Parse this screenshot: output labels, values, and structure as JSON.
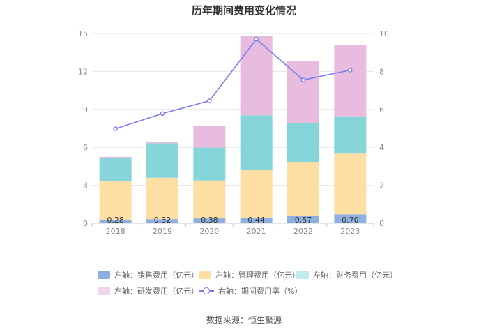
{
  "chart_data": {
    "type": "bar",
    "title": "历年期间费用变化情况",
    "categories": [
      "2018",
      "2019",
      "2020",
      "2021",
      "2022",
      "2023"
    ],
    "stacked": true,
    "series": [
      {
        "name": "左轴：销售费用（亿元）",
        "axis": "left",
        "color": "#8eb0e0",
        "values": [
          0.28,
          0.32,
          0.38,
          0.44,
          0.57,
          0.7
        ]
      },
      {
        "name": "左轴：管理费用（亿元）",
        "axis": "left",
        "color": "#fddea3",
        "values": [
          3.05,
          3.28,
          3.0,
          3.75,
          4.28,
          4.8
        ]
      },
      {
        "name": "左轴：财务费用（亿元）",
        "axis": "left",
        "color": "#86d5d9",
        "values": [
          1.85,
          2.72,
          2.6,
          4.35,
          3.05,
          2.95
        ]
      },
      {
        "name": "左轴：研发费用（亿元）",
        "axis": "left",
        "color": "#e8bcde",
        "values": [
          0.07,
          0.12,
          1.72,
          6.26,
          4.92,
          5.65
        ]
      },
      {
        "name": "右轴：期间费用率（%）",
        "axis": "right",
        "type": "line",
        "color": "#7b7bf2",
        "values": [
          4.98,
          5.78,
          6.45,
          9.7,
          7.55,
          8.07
        ]
      }
    ],
    "data_labels": [
      "0.28",
      "0.32",
      "0.38",
      "0.44",
      "0.57",
      "0.70"
    ],
    "y_left": {
      "min": 0,
      "max": 15,
      "ticks": [
        "0",
        "3",
        "6",
        "9",
        "12",
        "15"
      ]
    },
    "y_right": {
      "min": 0,
      "max": 10,
      "ticks": [
        "0",
        "2",
        "4",
        "6",
        "8",
        "10"
      ]
    },
    "legend_position": "bottom"
  },
  "source": "数据来源：恒生聚源"
}
